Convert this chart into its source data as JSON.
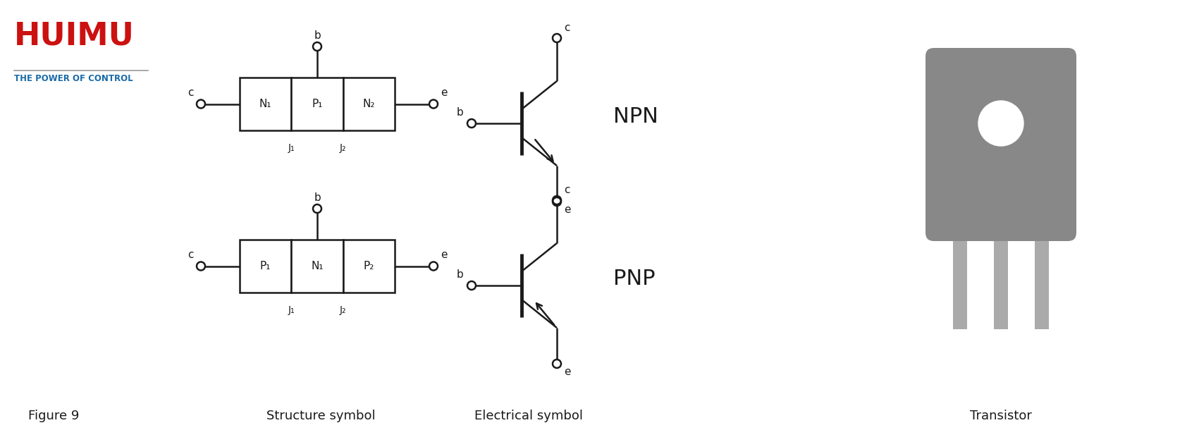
{
  "bg_color": "#ffffff",
  "logo_huimu_color": "#cc1111",
  "logo_sub_color": "#1a6aa8",
  "line_color": "#1a1a1a",
  "transistor_body_color": "#888888",
  "transistor_pin_color": "#aaaaaa",
  "label_fontsize": 11,
  "sub_fontsize": 10,
  "caption_fontsize": 13,
  "fig9_text": "Figure 9",
  "structure_label": "Structure symbol",
  "electrical_label": "Electrical symbol",
  "transistor_label": "Transistor",
  "npn_label": "NPN",
  "pnp_label": "PNP",
  "npn_boxes": [
    "N₁",
    "P₁",
    "N₂"
  ],
  "pnp_boxes": [
    "P₁",
    "N₁",
    "P₂"
  ],
  "j_labels": [
    "J₁",
    "J₂"
  ]
}
